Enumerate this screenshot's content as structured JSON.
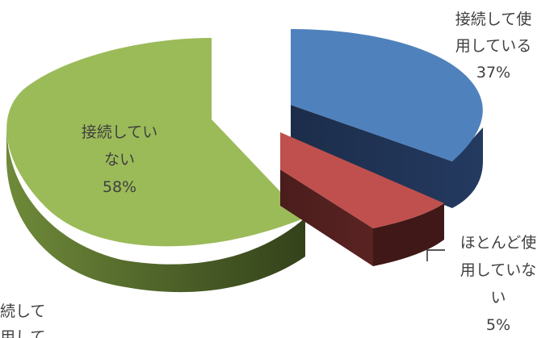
{
  "chart_data": {
    "type": "pie",
    "style": "3d-exploded",
    "slices": [
      {
        "key": "using",
        "label_lines": [
          "接続して使",
          "用している"
        ],
        "percent_label": "37%",
        "value": 37,
        "top_color": "#4F81BD",
        "side_color": "#1F3150"
      },
      {
        "key": "rarely",
        "label_lines": [
          "ほとんど使",
          "用していな",
          "い"
        ],
        "percent_label": "5%",
        "value": 5,
        "top_color": "#C0504D",
        "side_color": "#4E1F1E"
      },
      {
        "key": "not_connected",
        "label_lines": [
          "接続してい",
          "ない"
        ],
        "percent_label": "58%",
        "value": 58,
        "top_color": "#9BBB59",
        "side_color": "#3E4F22"
      }
    ],
    "partial_label_lines": [
      "続して",
      "用して"
    ]
  }
}
